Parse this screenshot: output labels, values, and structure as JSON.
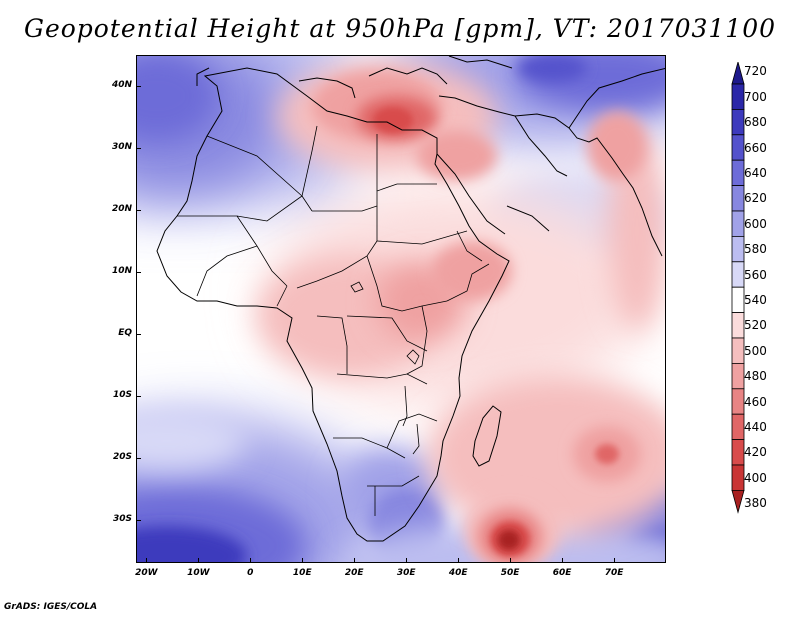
{
  "title": "Geopotential Height at 950hPa [gpm], VT: 2017031100",
  "footer": "GrADS: IGES/COLA",
  "map": {
    "projection": "lat-lon",
    "lon_range": [
      -22,
      80
    ],
    "lat_range": [
      -37,
      45
    ],
    "y_ticks": [
      {
        "lat": 40,
        "label": "40N"
      },
      {
        "lat": 30,
        "label": "30N"
      },
      {
        "lat": 20,
        "label": "20N"
      },
      {
        "lat": 10,
        "label": "10N"
      },
      {
        "lat": 0,
        "label": "EQ"
      },
      {
        "lat": -10,
        "label": "10S"
      },
      {
        "lat": -20,
        "label": "20S"
      },
      {
        "lat": -30,
        "label": "30S"
      }
    ],
    "x_ticks": [
      {
        "lon": -20,
        "label": "20W"
      },
      {
        "lon": -10,
        "label": "10W"
      },
      {
        "lon": 0,
        "label": "0"
      },
      {
        "lon": 10,
        "label": "10E"
      },
      {
        "lon": 20,
        "label": "20E"
      },
      {
        "lon": 30,
        "label": "30E"
      },
      {
        "lon": 40,
        "label": "40E"
      },
      {
        "lon": 50,
        "label": "50E"
      },
      {
        "lon": 60,
        "label": "60E"
      },
      {
        "lon": 70,
        "label": "70E"
      }
    ]
  },
  "colorbar": {
    "units": "gpm",
    "levels": [
      {
        "label": "720",
        "color": "#1e1a8c"
      },
      {
        "label": "700",
        "color": "#2b27a8"
      },
      {
        "label": "680",
        "color": "#3d3abd"
      },
      {
        "label": "660",
        "color": "#5452cc"
      },
      {
        "label": "640",
        "color": "#6d6cd8"
      },
      {
        "label": "620",
        "color": "#8787e0"
      },
      {
        "label": "600",
        "color": "#a1a2e8"
      },
      {
        "label": "580",
        "color": "#bcbdf0"
      },
      {
        "label": "560",
        "color": "#d8d9f7"
      },
      {
        "label": "540",
        "color": "#ffffff"
      },
      {
        "label": "520",
        "color": "#fbdcdc"
      },
      {
        "label": "500",
        "color": "#f5bebe"
      },
      {
        "label": "480",
        "color": "#efa1a1"
      },
      {
        "label": "460",
        "color": "#e88484"
      },
      {
        "label": "440",
        "color": "#e06666"
      },
      {
        "label": "420",
        "color": "#d84b4b"
      },
      {
        "label": "400",
        "color": "#c93535"
      },
      {
        "label": "380",
        "color": "#a82020"
      }
    ]
  },
  "features": {
    "lows": [
      {
        "name": "Eastern Mediterranean / Aegean low",
        "lon": 27,
        "lat": 37,
        "value": 440
      },
      {
        "name": "Southwest Indian Ocean deep low",
        "lon": 50,
        "lat": -33,
        "value": 380
      },
      {
        "name": "Mascarene low",
        "lon": 68,
        "lat": -19,
        "value": 460
      }
    ],
    "highs": [
      {
        "name": "Northwest Atlantic / Morocco high",
        "lon": -18,
        "lat": 38,
        "value": 640
      },
      {
        "name": "South Atlantic high",
        "lon": -12,
        "lat": -33,
        "value": 700
      },
      {
        "name": "South Africa high",
        "lon": 26,
        "lat": -26,
        "value": 600
      },
      {
        "name": "Caspian high",
        "lon": 55,
        "lat": 44,
        "value": 680
      }
    ]
  }
}
